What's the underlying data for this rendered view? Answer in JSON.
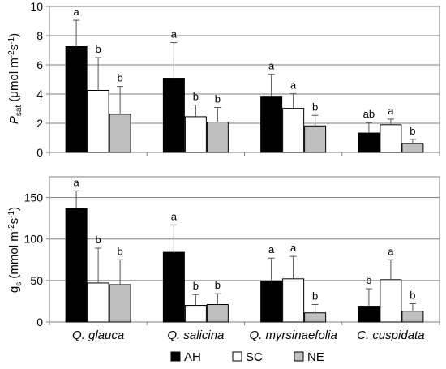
{
  "chart_data": [
    {
      "type": "bar",
      "ylabel_main": "P",
      "ylabel_sub": "sat",
      "ylabel_rest": " (μmol m",
      "ylabel_sup1": "-2",
      "ylabel_mid": "s",
      "ylabel_sup2": "-1",
      "ylabel_end": ")",
      "ylim": [
        0,
        10
      ],
      "yticks": [
        "0",
        "2",
        "4",
        "6",
        "8",
        "10"
      ],
      "ytick_values": [
        0,
        2,
        4,
        6,
        8,
        10
      ],
      "grid": true,
      "categories": [
        "Q. glauca",
        "Q. salicina",
        "Q. myrsinaefolia",
        "C. cuspidata"
      ],
      "series": [
        {
          "name": "AH",
          "values": [
            7.25,
            5.08,
            3.85,
            1.33
          ],
          "errors": [
            1.8,
            2.45,
            1.5,
            0.72
          ],
          "letters": [
            "a",
            "a",
            "a",
            "ab"
          ]
        },
        {
          "name": "SC",
          "values": [
            4.25,
            2.45,
            3.02,
            1.9
          ],
          "errors": [
            2.25,
            0.8,
            1.0,
            0.38
          ],
          "letters": [
            "b",
            "b",
            "a",
            "a"
          ]
        },
        {
          "name": "NE",
          "values": [
            2.62,
            2.08,
            1.82,
            0.62
          ],
          "errors": [
            1.9,
            1.0,
            0.72,
            0.28
          ],
          "letters": [
            "b",
            "b",
            "b",
            "b"
          ]
        }
      ]
    },
    {
      "type": "bar",
      "ylabel_main": "g",
      "ylabel_sub": "s",
      "ylabel_rest": " (mmol m",
      "ylabel_sup1": "-2",
      "ylabel_mid": "s",
      "ylabel_sup2": "-1",
      "ylabel_end": ")",
      "ylim": [
        0,
        175
      ],
      "yticks": [
        "0",
        "50",
        "100",
        "150"
      ],
      "ytick_values": [
        0,
        50,
        100,
        150
      ],
      "grid": true,
      "categories": [
        "Q. glauca",
        "Q. salicina",
        "Q. myrsinaefolia",
        "C. cuspidata"
      ],
      "series": [
        {
          "name": "AH",
          "values": [
            137,
            84,
            49,
            19
          ],
          "errors": [
            21,
            33,
            28,
            21
          ],
          "letters": [
            "a",
            "a",
            "a",
            "b"
          ]
        },
        {
          "name": "SC",
          "values": [
            47,
            20,
            52,
            51
          ],
          "errors": [
            42,
            13,
            27,
            24
          ],
          "letters": [
            "b",
            "b",
            "a",
            "a"
          ]
        },
        {
          "name": "NE",
          "values": [
            45,
            21,
            11,
            13
          ],
          "errors": [
            30,
            13,
            10,
            9
          ],
          "letters": [
            "b",
            "b",
            "b",
            "b"
          ]
        }
      ]
    }
  ],
  "legend": {
    "placement": "bottom-center",
    "items": [
      {
        "label": "AH",
        "color": "#000000"
      },
      {
        "label": "SC",
        "color": "#ffffff"
      },
      {
        "label": "NE",
        "color": "#bfbfbf"
      }
    ]
  },
  "colors": {
    "AH": "#000000",
    "SC": "#ffffff",
    "NE": "#bfbfbf",
    "grid": "#7f7f7f",
    "axis": "#7f7f7f"
  }
}
